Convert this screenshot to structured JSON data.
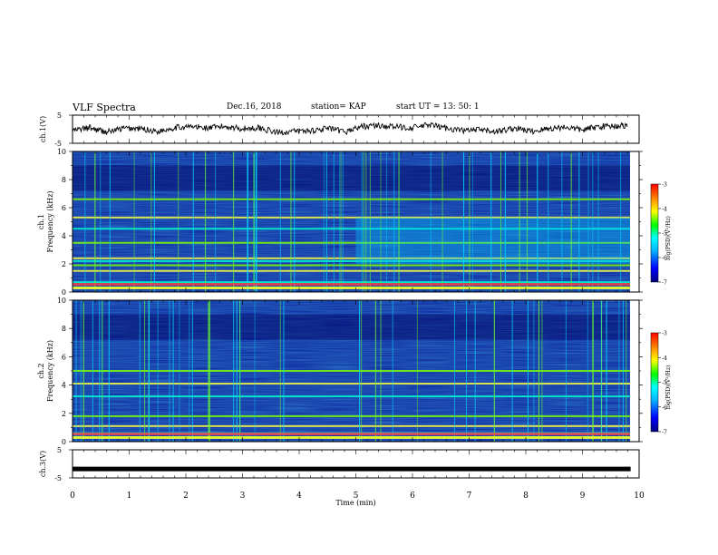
{
  "header": {
    "title": "VLF Spectra",
    "date": "Dec.16, 2018",
    "station": "station= KAP",
    "start": "start  UT =  13: 50: 1"
  },
  "chart_data": [
    {
      "panel": "ch1-waveform",
      "type": "line",
      "ylabel": "ch.1(V)",
      "yticks": [
        "5",
        "-5"
      ],
      "ylim": [
        -5,
        5
      ],
      "xlim": [
        0,
        10
      ],
      "x": [
        0.0,
        0.3,
        0.6,
        0.9,
        1.2,
        1.5,
        1.8,
        2.1,
        2.4,
        2.7,
        3.0,
        3.3,
        3.6,
        3.9,
        4.2,
        4.5,
        4.8,
        5.1,
        5.4,
        5.7,
        6.0,
        6.3,
        6.6,
        6.9,
        7.2,
        7.5,
        7.8,
        8.1,
        8.4,
        8.7,
        9.0,
        9.3,
        9.6,
        9.8
      ],
      "y": [
        -0.5,
        0.5,
        -1.0,
        0.3,
        0.2,
        -0.8,
        0.6,
        0.9,
        0.4,
        1.0,
        0.2,
        0.5,
        -1.2,
        -0.8,
        -0.5,
        0.3,
        -1.0,
        1.0,
        1.3,
        0.8,
        0.6,
        1.5,
        0.4,
        -0.5,
        -0.3,
        -0.8,
        0.4,
        -0.8,
        0.2,
        0.8,
        -0.3,
        1.0,
        1.2,
        1.3
      ]
    },
    {
      "panel": "ch1-spectrogram",
      "type": "heatmap",
      "ylabel": "ch.1",
      "ylabel2": "Frequency (kHz)",
      "yticks": [
        "0",
        "2",
        "4",
        "6",
        "8",
        "10"
      ],
      "ylim": [
        0,
        10
      ],
      "xlim": [
        0,
        10
      ],
      "colorbar": {
        "label": "log(PSD)(V²/Hz)",
        "ticks": [
          "-3",
          "-4",
          "-5",
          "-6",
          "-7"
        ],
        "range": [
          -7,
          -3
        ]
      },
      "bands_khz": [
        0.3,
        0.7,
        1.5,
        1.9,
        2.2,
        2.4,
        3.5,
        4.5,
        5.3,
        6.6
      ],
      "level_change_min": 5.0
    },
    {
      "panel": "ch2-spectrogram",
      "type": "heatmap",
      "ylabel": "ch.2",
      "ylabel2": "Frequency (kHz)",
      "yticks": [
        "0",
        "2",
        "4",
        "6",
        "8",
        "10"
      ],
      "ylim": [
        0,
        10
      ],
      "xlim": [
        0,
        10
      ],
      "colorbar": {
        "label": "log(PSD)(V²/Hz)",
        "ticks": [
          "-3",
          "-4",
          "-5",
          "-6",
          "-7"
        ],
        "range": [
          -7,
          -3
        ]
      },
      "bands_khz": [
        0.3,
        0.6,
        1.1,
        1.8,
        3.2,
        4.1,
        5.0
      ]
    },
    {
      "panel": "ch3-waveform",
      "type": "line",
      "ylabel": "ch.3(V)",
      "yticks": [
        "5",
        "-5"
      ],
      "ylim": [
        -5,
        5
      ],
      "xlim": [
        0,
        10
      ],
      "x": [
        0,
        9.85
      ],
      "y": [
        -1.8,
        -1.8
      ]
    }
  ],
  "xaxis": {
    "label": "Time  (min)",
    "ticks": [
      "0",
      "1",
      "2",
      "3",
      "4",
      "5",
      "6",
      "7",
      "8",
      "9",
      "10"
    ]
  },
  "colors": {
    "axis": "#000000",
    "colormap": [
      "#000080",
      "#0000ff",
      "#00b4ff",
      "#00ffff",
      "#00ff00",
      "#ffff00",
      "#ff8000",
      "#ff0000"
    ]
  }
}
